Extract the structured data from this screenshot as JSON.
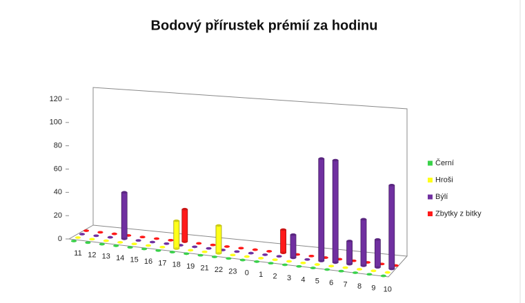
{
  "chart_data": {
    "type": "bar3d",
    "title": "Bodový přírustek prémií za hodinu",
    "categories": [
      "11",
      "12",
      "13",
      "14",
      "15",
      "16",
      "17",
      "18",
      "19",
      "21",
      "22",
      "23",
      "0",
      "1",
      "2",
      "3",
      "4",
      "5",
      "6",
      "7",
      "8",
      "9",
      "10"
    ],
    "series": [
      {
        "name": "Černí",
        "color": "#3ad24a",
        "values": [
          0,
          0,
          0,
          0,
          0,
          0,
          0,
          0,
          0,
          0,
          0,
          0,
          0,
          0,
          0,
          0,
          0,
          0,
          0,
          0,
          0,
          0,
          0
        ]
      },
      {
        "name": "Hroši",
        "color": "#ffff1a",
        "values": [
          0,
          0,
          0,
          0,
          0,
          0,
          0,
          30,
          0,
          0,
          30,
          0,
          0,
          0,
          0,
          0,
          0,
          0,
          0,
          0,
          0,
          0,
          0
        ]
      },
      {
        "name": "Býlí",
        "color": "#7030a0",
        "values": [
          0,
          0,
          0,
          50,
          0,
          0,
          0,
          0,
          0,
          0,
          0,
          0,
          0,
          0,
          0,
          25,
          0,
          110,
          110,
          25,
          50,
          30,
          90
        ]
      },
      {
        "name": "Zbytky z bitky",
        "color": "#ff1a1a",
        "values": [
          0,
          0,
          0,
          0,
          0,
          0,
          0,
          35,
          0,
          0,
          0,
          0,
          0,
          0,
          25,
          0,
          0,
          0,
          0,
          0,
          0,
          0,
          0
        ]
      }
    ],
    "ylim": [
      0,
      120
    ],
    "yticks": [
      0,
      20,
      40,
      60,
      80,
      100,
      120
    ],
    "legend": "right"
  }
}
